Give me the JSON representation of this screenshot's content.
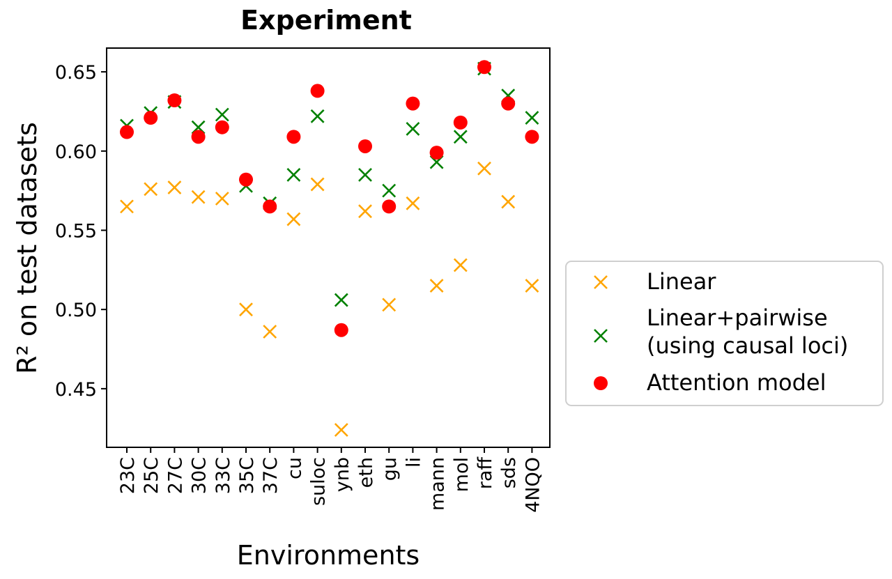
{
  "chart_data": {
    "type": "scatter",
    "title": "Experiment",
    "xlabel": "Environments",
    "ylabel": "R² on test datasets",
    "categories": [
      "23C",
      "25C",
      "27C",
      "30C",
      "33C",
      "35C",
      "37C",
      "cu",
      "suloc",
      "ynb",
      "eth",
      "gu",
      "li",
      "mann",
      "mol",
      "raff",
      "sds",
      "4NQO"
    ],
    "yticks": [
      "0.45",
      "0.50",
      "0.55",
      "0.60",
      "0.65"
    ],
    "ylim": [
      0.413,
      0.665
    ],
    "grid": false,
    "legend_position": "right",
    "series": [
      {
        "name": "Linear",
        "marker": "x",
        "color": "#FFA500",
        "values": [
          0.565,
          0.576,
          0.577,
          0.571,
          0.57,
          0.5,
          0.486,
          0.557,
          0.579,
          0.424,
          0.562,
          0.503,
          0.567,
          0.515,
          0.528,
          0.589,
          0.568,
          0.515
        ]
      },
      {
        "name": "Linear+pairwise",
        "name_line2": "(using causal loci)",
        "marker": "x",
        "color": "#008000",
        "values": [
          0.616,
          0.624,
          0.631,
          0.615,
          0.623,
          0.578,
          0.567,
          0.585,
          0.622,
          0.506,
          0.585,
          0.575,
          0.614,
          0.593,
          0.609,
          0.652,
          0.635,
          0.621
        ]
      },
      {
        "name": "Attention model",
        "marker": "circle",
        "color": "#FF0000",
        "values": [
          0.612,
          0.621,
          0.632,
          0.609,
          0.615,
          0.582,
          0.565,
          0.609,
          0.638,
          0.487,
          0.603,
          0.565,
          0.63,
          0.599,
          0.618,
          0.653,
          0.63,
          0.609
        ]
      }
    ]
  }
}
